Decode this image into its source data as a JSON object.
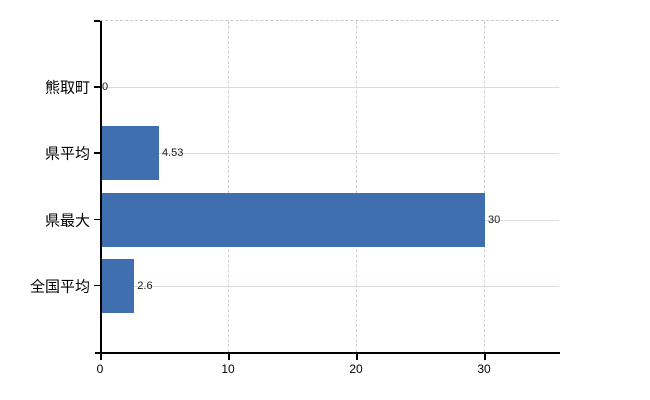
{
  "chart_data": {
    "type": "bar",
    "orientation": "horizontal",
    "title": "",
    "xlabel": "",
    "ylabel": "",
    "categories": [
      "熊取町",
      "県平均",
      "県最大",
      "全国平均"
    ],
    "values": [
      0,
      4.53,
      30,
      2.6
    ],
    "value_labels": [
      "0",
      "4.53",
      "30",
      "2.6"
    ],
    "x_ticks": [
      0,
      10,
      20,
      30
    ],
    "x_tick_labels": [
      "0",
      "10",
      "20",
      "30"
    ],
    "xlim": [
      0,
      35.9
    ],
    "grid": true,
    "legend": false,
    "colors": {
      "bar": "#3f6fae",
      "axis": "#000000",
      "horizontal_grid": "#d8ded8",
      "vertical_grid": "#d5cdd5",
      "background": "#ffffff",
      "label_text": "#000000"
    }
  }
}
